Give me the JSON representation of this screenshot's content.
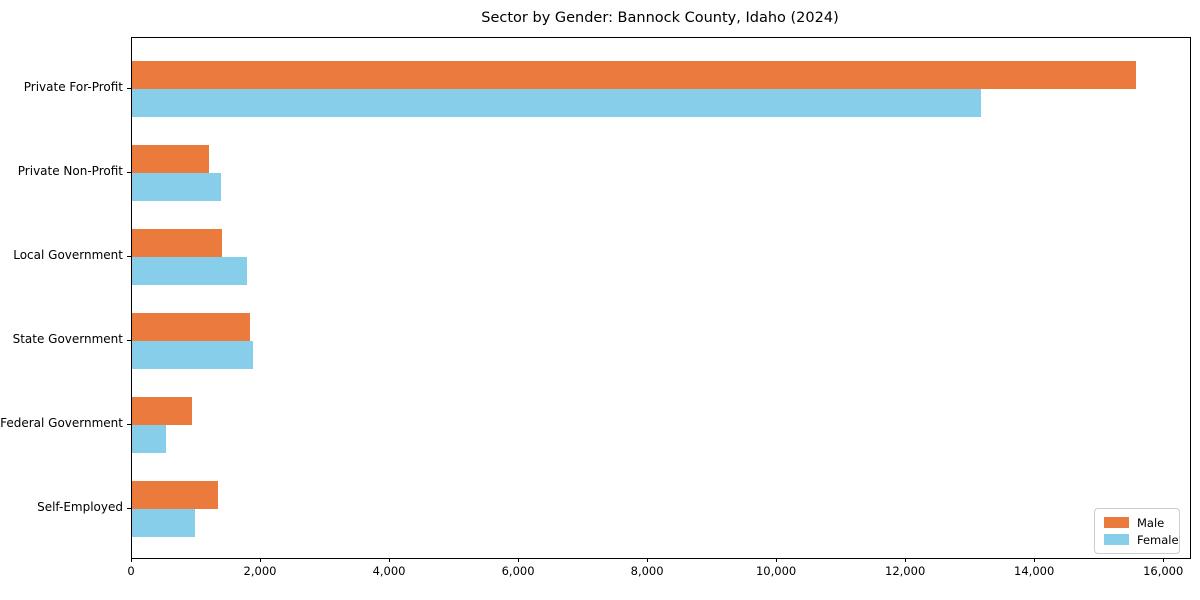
{
  "chart_data": {
    "type": "bar",
    "orientation": "horizontal",
    "title": "Sector by Gender: Bannock County, Idaho (2024)",
    "categories": [
      "Private For-Profit",
      "Private Non-Profit",
      "Local Government",
      "State Government",
      "Federal Government",
      "Self-Employed"
    ],
    "series": [
      {
        "name": "Male",
        "color": "#EA7B3C",
        "values": [
          15560,
          1190,
          1390,
          1830,
          930,
          1340
        ]
      },
      {
        "name": "Female",
        "color": "#87CEEB",
        "values": [
          13160,
          1380,
          1780,
          1870,
          530,
          980
        ]
      }
    ],
    "xlim": [
      0,
      16400
    ],
    "x_ticks": [
      {
        "value": 0,
        "label": "0"
      },
      {
        "value": 2000,
        "label": "2,000"
      },
      {
        "value": 4000,
        "label": "4,000"
      },
      {
        "value": 6000,
        "label": "6,000"
      },
      {
        "value": 8000,
        "label": "8,000"
      },
      {
        "value": 10000,
        "label": "10,000"
      },
      {
        "value": 12000,
        "label": "12,000"
      },
      {
        "value": 14000,
        "label": "14,000"
      },
      {
        "value": 16000,
        "label": "16,000"
      }
    ],
    "ylabel": "",
    "xlabel": "",
    "grid": false,
    "legend_position": "lower right"
  }
}
